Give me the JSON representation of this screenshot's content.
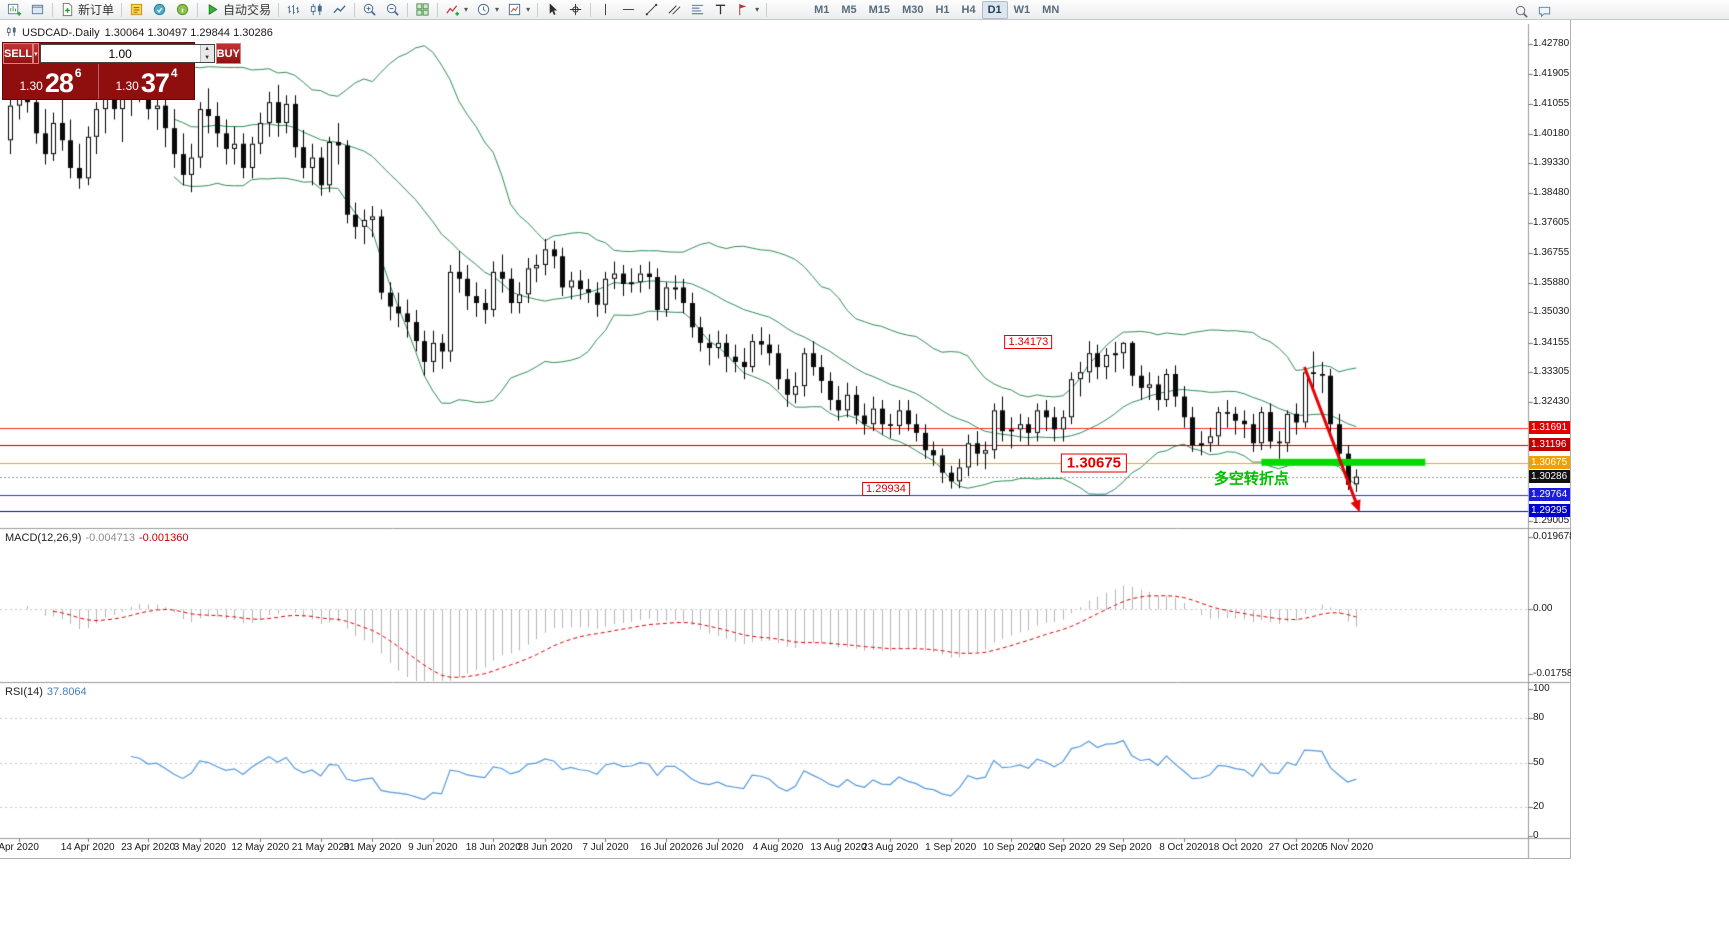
{
  "toolbar": {
    "groups": [
      [
        {
          "n": "new-chart-icon",
          "k": "chartplus"
        },
        {
          "n": "chart-profiles-icon",
          "k": "window"
        }
      ],
      [
        {
          "n": "new-order-button",
          "k": "order",
          "label": "新订单"
        }
      ],
      [
        {
          "n": "metaeditor-icon",
          "k": "editor"
        },
        {
          "n": "expert-advisors-icon",
          "k": "experts"
        },
        {
          "n": "options-icon",
          "k": "info"
        }
      ],
      [
        {
          "n": "autotrading-button",
          "k": "play",
          "label": "自动交易"
        }
      ],
      [
        {
          "n": "bar-chart-icon",
          "k": "bars"
        },
        {
          "n": "candlestick-chart-icon",
          "k": "candlesticks"
        },
        {
          "n": "line-chart-icon",
          "k": "linechart"
        }
      ],
      [
        {
          "n": "zoom-in-icon",
          "k": "zoomin"
        },
        {
          "n": "zoom-out-icon",
          "k": "zoomout"
        }
      ],
      [
        {
          "n": "tile-windows-icon",
          "k": "tile"
        }
      ],
      [
        {
          "n": "indicators-icon",
          "k": "indicators",
          "dd": true
        },
        {
          "n": "periods-icon",
          "k": "clock",
          "dd": true
        },
        {
          "n": "templates-icon",
          "k": "template",
          "dd": true
        }
      ],
      [
        {
          "n": "cursor-icon",
          "k": "cursor"
        },
        {
          "n": "crosshair-icon",
          "k": "crosshair"
        }
      ],
      [
        {
          "n": "vertical-line-icon",
          "k": "vline"
        },
        {
          "n": "horizontal-line-icon",
          "k": "hline"
        },
        {
          "n": "trendline-icon",
          "k": "tline"
        },
        {
          "n": "equidistant-channel-icon",
          "k": "channel"
        },
        {
          "n": "fibonacci-icon",
          "k": "fibo"
        },
        {
          "n": "text-tool-icon",
          "k": "text"
        },
        {
          "n": "arrows-tool-icon",
          "k": "arrows",
          "dd": true
        }
      ]
    ],
    "timeframes": [
      "M1",
      "M5",
      "M15",
      "M30",
      "H1",
      "H4",
      "D1",
      "W1",
      "MN"
    ],
    "active_timeframe": "D1",
    "right_icons": [
      {
        "n": "search-icon",
        "k": "search"
      },
      {
        "n": "chat-icon",
        "k": "chat"
      }
    ]
  },
  "chart": {
    "title": "USDCAD-.Daily",
    "ohlc_text": "1.30064 1.30497 1.29844 1.30286",
    "trade_panel": {
      "sell_label": "SELL",
      "buy_label": "BUY",
      "volume": "1.00",
      "sell_price_small": "1.30",
      "sell_price_big": "28",
      "sell_price_sup": "6",
      "buy_price_small": "1.30",
      "buy_price_big": "37",
      "buy_price_sup": "4"
    }
  },
  "chart_data": {
    "type": "candlestick",
    "symbol": "USDCAD",
    "timeframe": "Daily",
    "candles": [
      [
        1.4,
        1.413,
        1.396,
        1.41
      ],
      [
        1.41,
        1.4245,
        1.406,
        1.419
      ],
      [
        1.419,
        1.423,
        1.408,
        1.411
      ],
      [
        1.411,
        1.415,
        1.399,
        1.402
      ],
      [
        1.402,
        1.409,
        1.393,
        1.396
      ],
      [
        1.396,
        1.408,
        1.394,
        1.405
      ],
      [
        1.405,
        1.412,
        1.397,
        1.4
      ],
      [
        1.4,
        1.406,
        1.389,
        1.392
      ],
      [
        1.392,
        1.399,
        1.386,
        1.389
      ],
      [
        1.389,
        1.404,
        1.387,
        1.401
      ],
      [
        1.401,
        1.411,
        1.396,
        1.409
      ],
      [
        1.409,
        1.419,
        1.402,
        1.415
      ],
      [
        1.415,
        1.421,
        1.406,
        1.409
      ],
      [
        1.409,
        1.416,
        1.3995,
        1.412
      ],
      [
        1.412,
        1.423,
        1.407,
        1.418
      ],
      [
        1.418,
        1.424,
        1.411,
        1.416
      ],
      [
        1.416,
        1.42,
        1.406,
        1.409
      ],
      [
        1.409,
        1.417,
        1.403,
        1.41
      ],
      [
        1.41,
        1.414,
        1.398,
        1.4035
      ],
      [
        1.4035,
        1.409,
        1.392,
        1.396
      ],
      [
        1.396,
        1.402,
        1.387,
        1.39
      ],
      [
        1.39,
        1.399,
        1.385,
        1.395
      ],
      [
        1.395,
        1.411,
        1.392,
        1.409
      ],
      [
        1.409,
        1.415,
        1.402,
        1.407
      ],
      [
        1.407,
        1.411,
        1.398,
        1.402
      ],
      [
        1.402,
        1.406,
        1.393,
        1.3975
      ],
      [
        1.3975,
        1.404,
        1.393,
        1.399
      ],
      [
        1.399,
        1.402,
        1.389,
        1.392
      ],
      [
        1.392,
        1.401,
        1.389,
        1.399
      ],
      [
        1.399,
        1.408,
        1.396,
        1.405
      ],
      [
        1.405,
        1.414,
        1.401,
        1.411
      ],
      [
        1.411,
        1.416,
        1.401,
        1.405
      ],
      [
        1.405,
        1.413,
        1.402,
        1.4105
      ],
      [
        1.4105,
        1.413,
        1.395,
        1.398
      ],
      [
        1.398,
        1.403,
        1.389,
        1.392
      ],
      [
        1.392,
        1.399,
        1.387,
        1.395
      ],
      [
        1.395,
        1.398,
        1.384,
        1.387
      ],
      [
        1.387,
        1.401,
        1.385,
        1.3995
      ],
      [
        1.3995,
        1.405,
        1.393,
        1.3985
      ],
      [
        1.3985,
        1.4,
        1.376,
        1.3785
      ],
      [
        1.3785,
        1.382,
        1.3715,
        1.375
      ],
      [
        1.375,
        1.38,
        1.37,
        1.377
      ],
      [
        1.377,
        1.381,
        1.372,
        1.378
      ],
      [
        1.378,
        1.38,
        1.354,
        1.356
      ],
      [
        1.356,
        1.359,
        1.348,
        1.352
      ],
      [
        1.352,
        1.356,
        1.346,
        1.35
      ],
      [
        1.35,
        1.354,
        1.343,
        1.3475
      ],
      [
        1.3475,
        1.351,
        1.339,
        1.342
      ],
      [
        1.342,
        1.345,
        1.332,
        1.336
      ],
      [
        1.336,
        1.345,
        1.333,
        1.3415
      ],
      [
        1.3415,
        1.344,
        1.334,
        1.339
      ],
      [
        1.339,
        1.364,
        1.336,
        1.362
      ],
      [
        1.362,
        1.368,
        1.356,
        1.36
      ],
      [
        1.36,
        1.364,
        1.351,
        1.355
      ],
      [
        1.355,
        1.359,
        1.349,
        1.353
      ],
      [
        1.353,
        1.357,
        1.347,
        1.351
      ],
      [
        1.351,
        1.365,
        1.349,
        1.362
      ],
      [
        1.362,
        1.367,
        1.356,
        1.36
      ],
      [
        1.36,
        1.363,
        1.35,
        1.353
      ],
      [
        1.353,
        1.359,
        1.35,
        1.3555
      ],
      [
        1.3555,
        1.366,
        1.353,
        1.363
      ],
      [
        1.363,
        1.367,
        1.359,
        1.364
      ],
      [
        1.364,
        1.3715,
        1.361,
        1.3685
      ],
      [
        1.3685,
        1.371,
        1.363,
        1.3665
      ],
      [
        1.3665,
        1.369,
        1.355,
        1.3575
      ],
      [
        1.3575,
        1.362,
        1.354,
        1.3595
      ],
      [
        1.3595,
        1.3625,
        1.354,
        1.357
      ],
      [
        1.357,
        1.36,
        1.353,
        1.356
      ],
      [
        1.356,
        1.359,
        1.349,
        1.3525
      ],
      [
        1.3525,
        1.362,
        1.35,
        1.36
      ],
      [
        1.36,
        1.365,
        1.357,
        1.3615
      ],
      [
        1.3615,
        1.364,
        1.355,
        1.3585
      ],
      [
        1.3585,
        1.363,
        1.356,
        1.359
      ],
      [
        1.359,
        1.364,
        1.356,
        1.3615
      ],
      [
        1.3615,
        1.365,
        1.357,
        1.3605
      ],
      [
        1.3605,
        1.363,
        1.348,
        1.351
      ],
      [
        1.351,
        1.359,
        1.349,
        1.3575
      ],
      [
        1.3575,
        1.361,
        1.354,
        1.3575
      ],
      [
        1.3575,
        1.36,
        1.35,
        1.353
      ],
      [
        1.353,
        1.356,
        1.343,
        1.346
      ],
      [
        1.346,
        1.349,
        1.339,
        1.3415
      ],
      [
        1.3415,
        1.344,
        1.335,
        1.34
      ],
      [
        1.34,
        1.345,
        1.337,
        1.3415
      ],
      [
        1.3415,
        1.344,
        1.333,
        1.3375
      ],
      [
        1.3375,
        1.341,
        1.333,
        1.336
      ],
      [
        1.336,
        1.34,
        1.331,
        1.3345
      ],
      [
        1.3345,
        1.344,
        1.333,
        1.342
      ],
      [
        1.342,
        1.346,
        1.338,
        1.341
      ],
      [
        1.341,
        1.344,
        1.335,
        1.3385
      ],
      [
        1.3385,
        1.341,
        1.328,
        1.331
      ],
      [
        1.331,
        1.334,
        1.323,
        1.3265
      ],
      [
        1.3265,
        1.333,
        1.324,
        1.329
      ],
      [
        1.329,
        1.34,
        1.326,
        1.3385
      ],
      [
        1.3385,
        1.342,
        1.332,
        1.3345
      ],
      [
        1.3345,
        1.338,
        1.327,
        1.3305
      ],
      [
        1.3305,
        1.333,
        1.322,
        1.325
      ],
      [
        1.325,
        1.329,
        1.319,
        1.322
      ],
      [
        1.322,
        1.33,
        1.32,
        1.3265
      ],
      [
        1.3265,
        1.329,
        1.318,
        1.3205
      ],
      [
        1.3205,
        1.324,
        1.315,
        1.318
      ],
      [
        1.318,
        1.326,
        1.316,
        1.3225
      ],
      [
        1.3225,
        1.325,
        1.315,
        1.318
      ],
      [
        1.318,
        1.321,
        1.314,
        1.3175
      ],
      [
        1.3175,
        1.325,
        1.315,
        1.322
      ],
      [
        1.322,
        1.325,
        1.316,
        1.318
      ],
      [
        1.318,
        1.321,
        1.313,
        1.3155
      ],
      [
        1.3155,
        1.318,
        1.308,
        1.3105
      ],
      [
        1.3105,
        1.313,
        1.306,
        1.309
      ],
      [
        1.309,
        1.311,
        1.301,
        1.304
      ],
      [
        1.304,
        1.306,
        1.2994,
        1.3015
      ],
      [
        1.3015,
        1.308,
        1.2995,
        1.3055
      ],
      [
        1.3055,
        1.315,
        1.303,
        1.3125
      ],
      [
        1.3125,
        1.316,
        1.306,
        1.3095
      ],
      [
        1.3095,
        1.313,
        1.305,
        1.3105
      ],
      [
        1.3105,
        1.324,
        1.308,
        1.322
      ],
      [
        1.322,
        1.326,
        1.313,
        1.316
      ],
      [
        1.316,
        1.32,
        1.311,
        1.3165
      ],
      [
        1.3165,
        1.321,
        1.313,
        1.318
      ],
      [
        1.318,
        1.32,
        1.312,
        1.3155
      ],
      [
        1.3155,
        1.324,
        1.313,
        1.322
      ],
      [
        1.322,
        1.325,
        1.316,
        1.32
      ],
      [
        1.32,
        1.323,
        1.313,
        1.3165
      ],
      [
        1.3165,
        1.322,
        1.313,
        1.32
      ],
      [
        1.32,
        1.333,
        1.318,
        1.331
      ],
      [
        1.331,
        1.336,
        1.326,
        1.333
      ],
      [
        1.333,
        1.342,
        1.33,
        1.3385
      ],
      [
        1.3385,
        1.341,
        1.331,
        1.3345
      ],
      [
        1.3345,
        1.34,
        1.331,
        1.338
      ],
      [
        1.338,
        1.3418,
        1.333,
        1.3385
      ],
      [
        1.3385,
        1.34173,
        1.334,
        1.3415
      ],
      [
        1.3415,
        1.342,
        1.329,
        1.332
      ],
      [
        1.332,
        1.335,
        1.325,
        1.3285
      ],
      [
        1.3285,
        1.333,
        1.325,
        1.3295
      ],
      [
        1.3295,
        1.332,
        1.322,
        1.325
      ],
      [
        1.325,
        1.334,
        1.323,
        1.3325
      ],
      [
        1.3325,
        1.335,
        1.323,
        1.326
      ],
      [
        1.326,
        1.329,
        1.317,
        1.32
      ],
      [
        1.32,
        1.323,
        1.31,
        1.312
      ],
      [
        1.312,
        1.316,
        1.309,
        1.3125
      ],
      [
        1.3125,
        1.317,
        1.31,
        1.3145
      ],
      [
        1.3145,
        1.323,
        1.312,
        1.3215
      ],
      [
        1.3215,
        1.325,
        1.317,
        1.321
      ],
      [
        1.321,
        1.323,
        1.315,
        1.319
      ],
      [
        1.319,
        1.322,
        1.314,
        1.318
      ],
      [
        1.318,
        1.321,
        1.31,
        1.3125
      ],
      [
        1.3125,
        1.323,
        1.3105,
        1.3215
      ],
      [
        1.3215,
        1.324,
        1.311,
        1.313
      ],
      [
        1.313,
        1.316,
        1.308,
        1.3125
      ],
      [
        1.3125,
        1.322,
        1.31,
        1.321
      ],
      [
        1.321,
        1.324,
        1.315,
        1.3185
      ],
      [
        1.3185,
        1.334,
        1.317,
        1.333
      ],
      [
        1.333,
        1.339,
        1.328,
        1.3325
      ],
      [
        1.3325,
        1.336,
        1.327,
        1.332
      ],
      [
        1.332,
        1.334,
        1.315,
        1.318
      ],
      [
        1.318,
        1.321,
        1.306,
        1.3095
      ],
      [
        1.3095,
        1.312,
        1.299,
        1.3005
      ],
      [
        1.30064,
        1.30497,
        1.29844,
        1.30286
      ]
    ],
    "bollinger": {
      "period": 20,
      "deviation": 2,
      "color": "#2e8b57"
    },
    "hlines": [
      {
        "price": 1.31691,
        "color": "#ff2a2a"
      },
      {
        "price": 1.31196,
        "color": "#b00000"
      },
      {
        "price": 1.30675,
        "color": "#ffa500"
      },
      {
        "price": 1.29764,
        "color": "#2828ff"
      },
      {
        "price": 1.29295,
        "color": "#0000cc"
      }
    ],
    "current_price": 1.30286,
    "highlight_bar": {
      "i1": 145,
      "i2": 164,
      "price": 1.307,
      "thickness": 7,
      "color": "#00dc00"
    },
    "trend_arrow": {
      "i1": 150,
      "p1": 1.3345,
      "i2": 156.4,
      "p2": 1.2926,
      "color": "#e60000",
      "width": 3
    },
    "callouts": [
      {
        "text": "1.34173",
        "i": 118,
        "price": 1.34173,
        "large": false
      },
      {
        "text": "1.30675",
        "i": 125.6,
        "price": 1.30675,
        "large": true
      },
      {
        "text": "1.29934",
        "i": 101.5,
        "price": 1.29934,
        "large": false
      }
    ],
    "annotation": {
      "text": "多空转折点",
      "i": 139.5,
      "price": 1.30245,
      "color": "#00c000"
    },
    "macd": {
      "label": "MACD(12,26,9)",
      "value": "-0.004713",
      "signal": "-0.001360",
      "fast": 12,
      "slow": 26,
      "signal_period": 9,
      "axis": [
        "0.019678",
        "0.00",
        "-0.017582"
      ]
    },
    "rsi": {
      "label": "RSI(14)",
      "value": "37.8064",
      "period": 14,
      "levels": [
        "100",
        "80",
        "50",
        "20",
        "0"
      ]
    },
    "price_ticks": [
      "1.42780",
      "1.41905",
      "1.41055",
      "1.40180",
      "1.39330",
      "1.38480",
      "1.37605",
      "1.36755",
      "1.35880",
      "1.35030",
      "1.34155",
      "1.33305",
      "1.32430",
      "1.29005"
    ],
    "badges": [
      {
        "v": "1.31691",
        "bg": "#e00000"
      },
      {
        "v": "1.31196",
        "bg": "#c00000"
      },
      {
        "v": "1.30675",
        "bg": "#f0a000"
      },
      {
        "v": "1.30286",
        "bg": "#111111"
      },
      {
        "v": "1.29764",
        "bg": "#1b1be0"
      },
      {
        "v": "1.29295",
        "bg": "#0000cc"
      }
    ],
    "dates": [
      {
        "t": "Apr 2020",
        "i": 1
      },
      {
        "t": "14 Apr 2020",
        "i": 9
      },
      {
        "t": "23 Apr 2020",
        "i": 16
      },
      {
        "t": "3 May 2020",
        "i": 22
      },
      {
        "t": "12 May 2020",
        "i": 29
      },
      {
        "t": "21 May 2020",
        "i": 36
      },
      {
        "t": "31 May 2020",
        "i": 42
      },
      {
        "t": "9 Jun 2020",
        "i": 49
      },
      {
        "t": "18 Jun 2020",
        "i": 56
      },
      {
        "t": "28 Jun 2020",
        "i": 62
      },
      {
        "t": "7 Jul 2020",
        "i": 69
      },
      {
        "t": "16 Jul 2020",
        "i": 76
      },
      {
        "t": "26 Jul 2020",
        "i": 82
      },
      {
        "t": "4 Aug 2020",
        "i": 89
      },
      {
        "t": "13 Aug 2020",
        "i": 96
      },
      {
        "t": "23 Aug 2020",
        "i": 102
      },
      {
        "t": "1 Sep 2020",
        "i": 109
      },
      {
        "t": "10 Sep 2020",
        "i": 116
      },
      {
        "t": "20 Sep 2020",
        "i": 122
      },
      {
        "t": "29 Sep 2020",
        "i": 129
      },
      {
        "t": "8 Oct 2020",
        "i": 136
      },
      {
        "t": "18 Oct 2020",
        "i": 142
      },
      {
        "t": "27 Oct 2020",
        "i": 149
      },
      {
        "t": "5 Nov 2020",
        "i": 155
      }
    ]
  }
}
